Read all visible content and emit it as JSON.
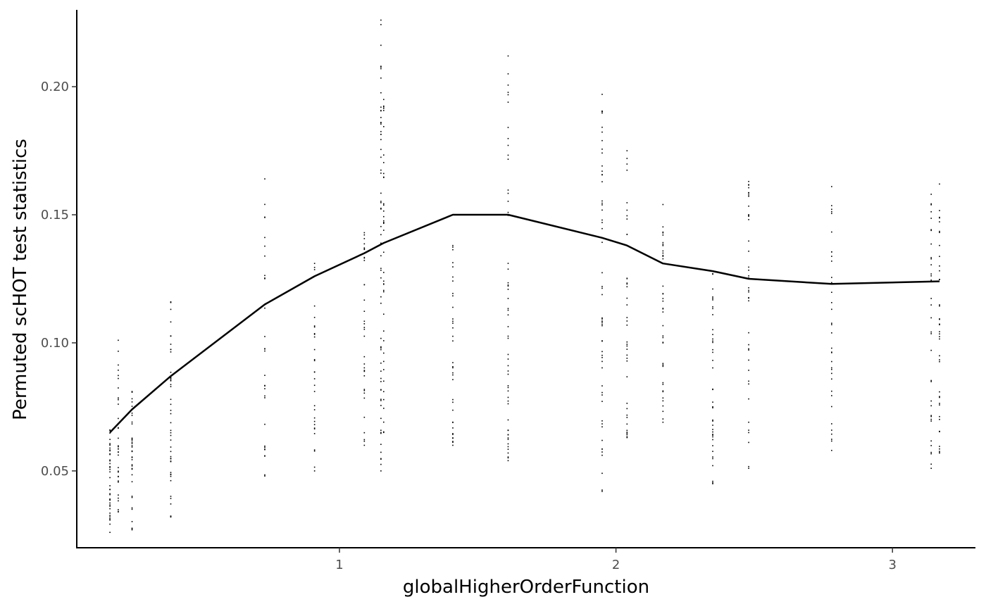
{
  "chart_data": {
    "type": "scatter",
    "xlabel": "globalHigherOrderFunction",
    "ylabel": "Permuted scHOT test statistics",
    "xlim": [
      0.05,
      3.3
    ],
    "ylim": [
      0.02,
      0.23
    ],
    "x_ticks": [
      1,
      2,
      3
    ],
    "x_tick_labels": [
      "1",
      "2",
      "3"
    ],
    "y_ticks": [
      0.05,
      0.1,
      0.15,
      0.2
    ],
    "y_tick_labels": [
      "0.05",
      "0.10",
      "0.15",
      "0.20"
    ],
    "grid": false,
    "legend": "none",
    "point_color": "#000000",
    "line_color": "#000000",
    "point_columns": [
      {
        "x": 0.17,
        "min": 0.026,
        "max": 0.066,
        "n": 40
      },
      {
        "x": 0.2,
        "min": 0.034,
        "max": 0.101,
        "n": 35
      },
      {
        "x": 0.25,
        "min": 0.027,
        "max": 0.081,
        "n": 35
      },
      {
        "x": 0.39,
        "min": 0.032,
        "max": 0.116,
        "n": 45
      },
      {
        "x": 0.73,
        "min": 0.048,
        "max": 0.164,
        "n": 30
      },
      {
        "x": 0.91,
        "min": 0.05,
        "max": 0.131,
        "n": 30
      },
      {
        "x": 1.09,
        "min": 0.06,
        "max": 0.143,
        "n": 35
      },
      {
        "x": 1.15,
        "min": 0.05,
        "max": 0.226,
        "n": 60
      },
      {
        "x": 1.16,
        "min": 0.065,
        "max": 0.195,
        "n": 40
      },
      {
        "x": 1.41,
        "min": 0.06,
        "max": 0.138,
        "n": 35
      },
      {
        "x": 1.61,
        "min": 0.054,
        "max": 0.212,
        "n": 55
      },
      {
        "x": 1.95,
        "min": 0.042,
        "max": 0.197,
        "n": 55
      },
      {
        "x": 2.04,
        "min": 0.063,
        "max": 0.175,
        "n": 40
      },
      {
        "x": 2.17,
        "min": 0.069,
        "max": 0.154,
        "n": 40
      },
      {
        "x": 2.35,
        "min": 0.045,
        "max": 0.127,
        "n": 40
      },
      {
        "x": 2.48,
        "min": 0.051,
        "max": 0.163,
        "n": 40
      },
      {
        "x": 2.78,
        "min": 0.058,
        "max": 0.161,
        "n": 35
      },
      {
        "x": 3.14,
        "min": 0.051,
        "max": 0.158,
        "n": 35
      },
      {
        "x": 3.17,
        "min": 0.057,
        "max": 0.162,
        "n": 40
      }
    ],
    "series": [
      {
        "x": [
          0.17,
          0.25,
          0.39,
          0.73,
          0.91,
          1.09,
          1.16,
          1.41,
          1.61,
          1.95,
          2.04,
          2.17,
          2.35,
          2.48,
          2.78,
          3.17
        ],
        "y": [
          0.065,
          0.074,
          0.087,
          0.115,
          0.126,
          0.135,
          0.139,
          0.15,
          0.15,
          0.141,
          0.138,
          0.131,
          0.128,
          0.125,
          0.123,
          0.124
        ]
      }
    ]
  }
}
